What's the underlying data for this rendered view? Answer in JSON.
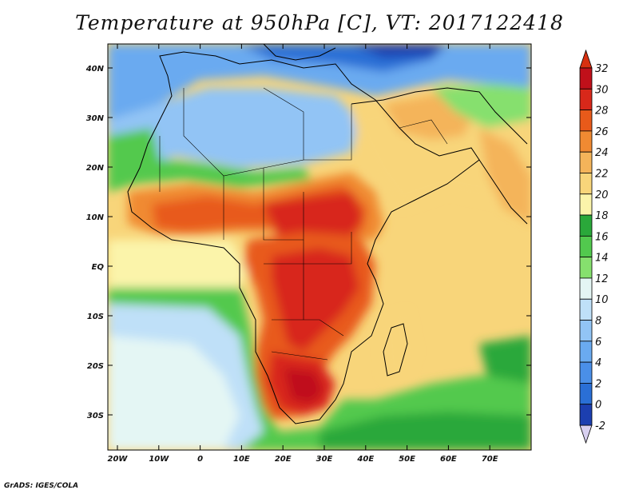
{
  "title": "Temperature at 950hPa [C], VT: 2017122418",
  "credit": "GrADS: IGES/COLA",
  "map": {
    "lon_ticks": [
      "20W",
      "10W",
      "0",
      "10E",
      "20E",
      "30E",
      "40E",
      "50E",
      "60E",
      "70E"
    ],
    "lat_ticks": [
      "40N",
      "30N",
      "20N",
      "10N",
      "EQ",
      "10S",
      "20S",
      "30S"
    ]
  },
  "colorbar": {
    "levels": [
      "-2",
      "0",
      "2",
      "4",
      "6",
      "8",
      "10",
      "12",
      "14",
      "16",
      "18",
      "20",
      "22",
      "24",
      "26",
      "28",
      "30",
      "32"
    ],
    "colors": [
      "#1a0a8a",
      "#1c3fb0",
      "#2a6fd6",
      "#4a8fe8",
      "#6aaaf0",
      "#92c4f5",
      "#bfe0f8",
      "#e4f6f4",
      "#86e06e",
      "#52c94e",
      "#2aa83a",
      "#fbf4aa",
      "#f8d57a",
      "#f4b45a",
      "#f08a32",
      "#e85a1a",
      "#d8281a",
      "#c0101a",
      "#d83010"
    ]
  }
}
